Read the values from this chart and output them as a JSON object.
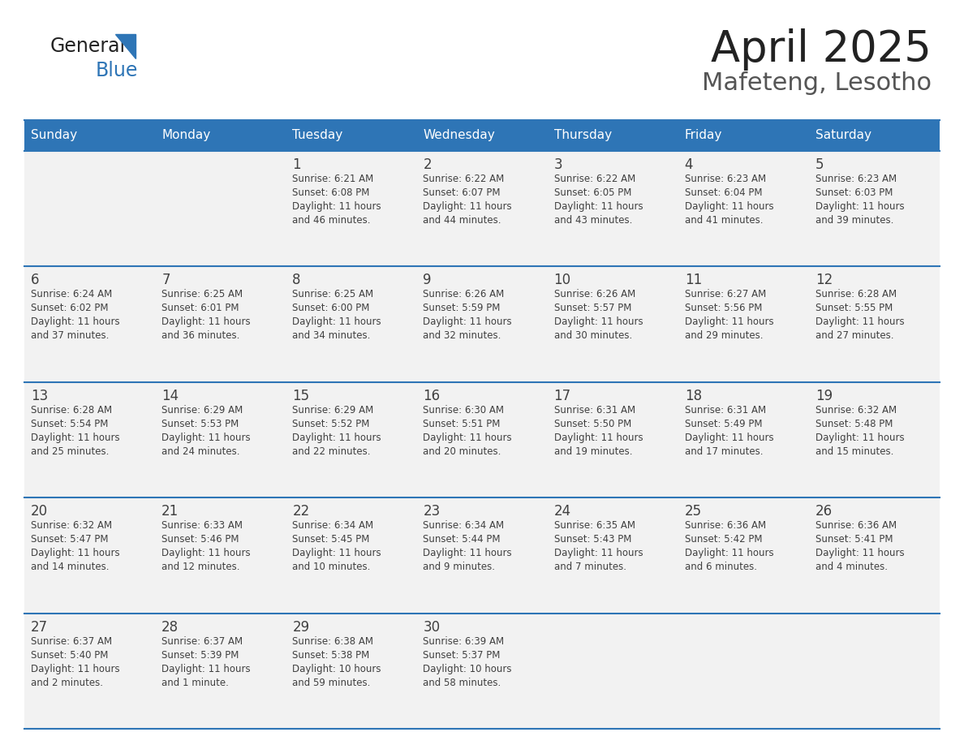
{
  "title": "April 2025",
  "subtitle": "Mafeteng, Lesotho",
  "header_bg": "#2E75B6",
  "header_text_color": "#FFFFFF",
  "cell_bg": "#F2F2F2",
  "border_color": "#2E75B6",
  "text_color": "#404040",
  "days_of_week": [
    "Sunday",
    "Monday",
    "Tuesday",
    "Wednesday",
    "Thursday",
    "Friday",
    "Saturday"
  ],
  "calendar_data": [
    [
      {
        "day": "",
        "sunrise": "",
        "sunset": "",
        "daylight_l1": "",
        "daylight_l2": ""
      },
      {
        "day": "",
        "sunrise": "",
        "sunset": "",
        "daylight_l1": "",
        "daylight_l2": ""
      },
      {
        "day": "1",
        "sunrise": "Sunrise: 6:21 AM",
        "sunset": "Sunset: 6:08 PM",
        "daylight_l1": "Daylight: 11 hours",
        "daylight_l2": "and 46 minutes."
      },
      {
        "day": "2",
        "sunrise": "Sunrise: 6:22 AM",
        "sunset": "Sunset: 6:07 PM",
        "daylight_l1": "Daylight: 11 hours",
        "daylight_l2": "and 44 minutes."
      },
      {
        "day": "3",
        "sunrise": "Sunrise: 6:22 AM",
        "sunset": "Sunset: 6:05 PM",
        "daylight_l1": "Daylight: 11 hours",
        "daylight_l2": "and 43 minutes."
      },
      {
        "day": "4",
        "sunrise": "Sunrise: 6:23 AM",
        "sunset": "Sunset: 6:04 PM",
        "daylight_l1": "Daylight: 11 hours",
        "daylight_l2": "and 41 minutes."
      },
      {
        "day": "5",
        "sunrise": "Sunrise: 6:23 AM",
        "sunset": "Sunset: 6:03 PM",
        "daylight_l1": "Daylight: 11 hours",
        "daylight_l2": "and 39 minutes."
      }
    ],
    [
      {
        "day": "6",
        "sunrise": "Sunrise: 6:24 AM",
        "sunset": "Sunset: 6:02 PM",
        "daylight_l1": "Daylight: 11 hours",
        "daylight_l2": "and 37 minutes."
      },
      {
        "day": "7",
        "sunrise": "Sunrise: 6:25 AM",
        "sunset": "Sunset: 6:01 PM",
        "daylight_l1": "Daylight: 11 hours",
        "daylight_l2": "and 36 minutes."
      },
      {
        "day": "8",
        "sunrise": "Sunrise: 6:25 AM",
        "sunset": "Sunset: 6:00 PM",
        "daylight_l1": "Daylight: 11 hours",
        "daylight_l2": "and 34 minutes."
      },
      {
        "day": "9",
        "sunrise": "Sunrise: 6:26 AM",
        "sunset": "Sunset: 5:59 PM",
        "daylight_l1": "Daylight: 11 hours",
        "daylight_l2": "and 32 minutes."
      },
      {
        "day": "10",
        "sunrise": "Sunrise: 6:26 AM",
        "sunset": "Sunset: 5:57 PM",
        "daylight_l1": "Daylight: 11 hours",
        "daylight_l2": "and 30 minutes."
      },
      {
        "day": "11",
        "sunrise": "Sunrise: 6:27 AM",
        "sunset": "Sunset: 5:56 PM",
        "daylight_l1": "Daylight: 11 hours",
        "daylight_l2": "and 29 minutes."
      },
      {
        "day": "12",
        "sunrise": "Sunrise: 6:28 AM",
        "sunset": "Sunset: 5:55 PM",
        "daylight_l1": "Daylight: 11 hours",
        "daylight_l2": "and 27 minutes."
      }
    ],
    [
      {
        "day": "13",
        "sunrise": "Sunrise: 6:28 AM",
        "sunset": "Sunset: 5:54 PM",
        "daylight_l1": "Daylight: 11 hours",
        "daylight_l2": "and 25 minutes."
      },
      {
        "day": "14",
        "sunrise": "Sunrise: 6:29 AM",
        "sunset": "Sunset: 5:53 PM",
        "daylight_l1": "Daylight: 11 hours",
        "daylight_l2": "and 24 minutes."
      },
      {
        "day": "15",
        "sunrise": "Sunrise: 6:29 AM",
        "sunset": "Sunset: 5:52 PM",
        "daylight_l1": "Daylight: 11 hours",
        "daylight_l2": "and 22 minutes."
      },
      {
        "day": "16",
        "sunrise": "Sunrise: 6:30 AM",
        "sunset": "Sunset: 5:51 PM",
        "daylight_l1": "Daylight: 11 hours",
        "daylight_l2": "and 20 minutes."
      },
      {
        "day": "17",
        "sunrise": "Sunrise: 6:31 AM",
        "sunset": "Sunset: 5:50 PM",
        "daylight_l1": "Daylight: 11 hours",
        "daylight_l2": "and 19 minutes."
      },
      {
        "day": "18",
        "sunrise": "Sunrise: 6:31 AM",
        "sunset": "Sunset: 5:49 PM",
        "daylight_l1": "Daylight: 11 hours",
        "daylight_l2": "and 17 minutes."
      },
      {
        "day": "19",
        "sunrise": "Sunrise: 6:32 AM",
        "sunset": "Sunset: 5:48 PM",
        "daylight_l1": "Daylight: 11 hours",
        "daylight_l2": "and 15 minutes."
      }
    ],
    [
      {
        "day": "20",
        "sunrise": "Sunrise: 6:32 AM",
        "sunset": "Sunset: 5:47 PM",
        "daylight_l1": "Daylight: 11 hours",
        "daylight_l2": "and 14 minutes."
      },
      {
        "day": "21",
        "sunrise": "Sunrise: 6:33 AM",
        "sunset": "Sunset: 5:46 PM",
        "daylight_l1": "Daylight: 11 hours",
        "daylight_l2": "and 12 minutes."
      },
      {
        "day": "22",
        "sunrise": "Sunrise: 6:34 AM",
        "sunset": "Sunset: 5:45 PM",
        "daylight_l1": "Daylight: 11 hours",
        "daylight_l2": "and 10 minutes."
      },
      {
        "day": "23",
        "sunrise": "Sunrise: 6:34 AM",
        "sunset": "Sunset: 5:44 PM",
        "daylight_l1": "Daylight: 11 hours",
        "daylight_l2": "and 9 minutes."
      },
      {
        "day": "24",
        "sunrise": "Sunrise: 6:35 AM",
        "sunset": "Sunset: 5:43 PM",
        "daylight_l1": "Daylight: 11 hours",
        "daylight_l2": "and 7 minutes."
      },
      {
        "day": "25",
        "sunrise": "Sunrise: 6:36 AM",
        "sunset": "Sunset: 5:42 PM",
        "daylight_l1": "Daylight: 11 hours",
        "daylight_l2": "and 6 minutes."
      },
      {
        "day": "26",
        "sunrise": "Sunrise: 6:36 AM",
        "sunset": "Sunset: 5:41 PM",
        "daylight_l1": "Daylight: 11 hours",
        "daylight_l2": "and 4 minutes."
      }
    ],
    [
      {
        "day": "27",
        "sunrise": "Sunrise: 6:37 AM",
        "sunset": "Sunset: 5:40 PM",
        "daylight_l1": "Daylight: 11 hours",
        "daylight_l2": "and 2 minutes."
      },
      {
        "day": "28",
        "sunrise": "Sunrise: 6:37 AM",
        "sunset": "Sunset: 5:39 PM",
        "daylight_l1": "Daylight: 11 hours",
        "daylight_l2": "and 1 minute."
      },
      {
        "day": "29",
        "sunrise": "Sunrise: 6:38 AM",
        "sunset": "Sunset: 5:38 PM",
        "daylight_l1": "Daylight: 10 hours",
        "daylight_l2": "and 59 minutes."
      },
      {
        "day": "30",
        "sunrise": "Sunrise: 6:39 AM",
        "sunset": "Sunset: 5:37 PM",
        "daylight_l1": "Daylight: 10 hours",
        "daylight_l2": "and 58 minutes."
      },
      {
        "day": "",
        "sunrise": "",
        "sunset": "",
        "daylight_l1": "",
        "daylight_l2": ""
      },
      {
        "day": "",
        "sunrise": "",
        "sunset": "",
        "daylight_l1": "",
        "daylight_l2": ""
      },
      {
        "day": "",
        "sunrise": "",
        "sunset": "",
        "daylight_l1": "",
        "daylight_l2": ""
      }
    ]
  ]
}
